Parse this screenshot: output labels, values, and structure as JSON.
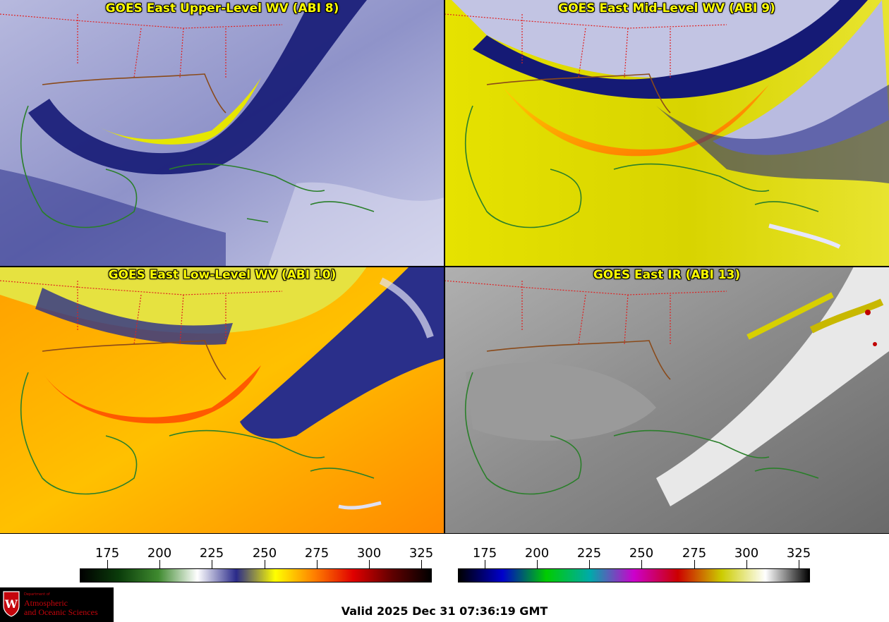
{
  "panels": [
    {
      "title": "GOES East Upper-Level WV (ABI 8)"
    },
    {
      "title": "GOES East Mid-Level WV (ABI 9)"
    },
    {
      "title": "GOES East Low-Level WV (ABI 10)"
    },
    {
      "title": "GOES East IR (ABI 13)"
    }
  ],
  "wv_colorbar": {
    "ticks": [
      "175",
      "200",
      "225",
      "250",
      "275",
      "300",
      "325"
    ],
    "colors": [
      "#000000",
      "#0b3d0b",
      "#3f8a2f",
      "#ffffff",
      "#2a2a8a",
      "#ffff00",
      "#ff8000",
      "#e00000",
      "#600000",
      "#000000"
    ]
  },
  "ir_colorbar": {
    "ticks": [
      "175",
      "200",
      "225",
      "250",
      "275",
      "300",
      "325"
    ],
    "colors": [
      "#000000",
      "#0000cc",
      "#00cc00",
      "#00aaaa",
      "#cc00cc",
      "#cc0000",
      "#cccc00",
      "#ffffff",
      "#000000"
    ]
  },
  "logo": {
    "dept": "Department of",
    "line1": "Atmospheric",
    "line2": "and Oceanic Sciences"
  },
  "valid_time": "Valid 2025 Dec 31 07:36:19 GMT"
}
